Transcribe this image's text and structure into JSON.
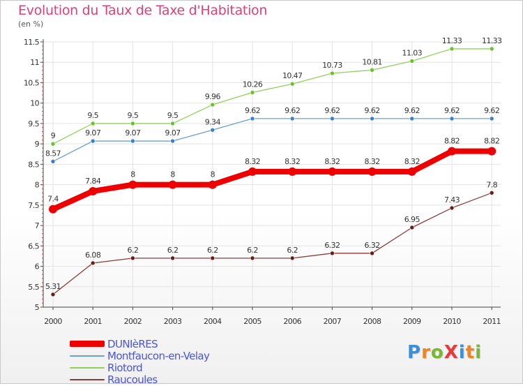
{
  "header": {
    "title": "Evolution du Taux de Taxe d'Habitation",
    "subtitle": "(en %)"
  },
  "colors": {
    "title": "#e0407a",
    "axis": "#444444",
    "grid": "#e3e3e3",
    "legend_text": "#4a55d8"
  },
  "logo": {
    "text": "ProXiti",
    "letters": [
      {
        "ch": "P",
        "color": "#3c8fd6"
      },
      {
        "ch": "r",
        "color": "#e8862a"
      },
      {
        "ch": "o",
        "color": "#79b834"
      },
      {
        "ch": "X",
        "color": "#e23c3c"
      },
      {
        "ch": "i",
        "color": "#3c8fd6"
      },
      {
        "ch": "t",
        "color": "#e8862a"
      },
      {
        "ch": "i",
        "color": "#79b834"
      }
    ]
  },
  "chart_data": {
    "type": "line",
    "title": "Evolution du Taux de Taxe d'Habitation",
    "subtitle": "(en %)",
    "xlabel": "",
    "ylabel": "",
    "categories": [
      "2000",
      "2001",
      "2002",
      "2003",
      "2004",
      "2005",
      "2006",
      "2007",
      "2008",
      "2009",
      "2010",
      "2011"
    ],
    "ylim": [
      5,
      11.5
    ],
    "yticks": [
      "5",
      "5.5",
      "6",
      "6.5",
      "7",
      "7.5",
      "8",
      "8.5",
      "9",
      "9.5",
      "10",
      "10.5",
      "11",
      "11.5"
    ],
    "grid": true,
    "legend_position": "bottom-left",
    "series": [
      {
        "name": "Riotord",
        "color": "#8fd05a",
        "marker": "#6cc030",
        "width": 1.3,
        "values": [
          9,
          9.5,
          9.5,
          9.5,
          9.96,
          10.26,
          10.47,
          10.73,
          10.81,
          11.03,
          11.33,
          11.33
        ],
        "labels": [
          "9",
          "9.5",
          "9.5",
          "9.5",
          "9.96",
          "10.26",
          "10.47",
          "10.73",
          "10.81",
          "11.03",
          "11.33",
          "11.33"
        ]
      },
      {
        "name": "Montfaucon-en-Velay",
        "color": "#6a9fd1",
        "marker": "#3a80c8",
        "width": 1.3,
        "values": [
          8.57,
          9.07,
          9.07,
          9.07,
          9.34,
          9.62,
          9.62,
          9.62,
          9.62,
          9.62,
          9.62,
          9.62
        ],
        "labels": [
          "8.57",
          "9.07",
          "9.07",
          "9.07",
          "9.34",
          "9.62",
          "9.62",
          "9.62",
          "9.62",
          "9.62",
          "9.62",
          "9.62"
        ]
      },
      {
        "name": "DUNIèRES",
        "color": "#ee0000",
        "marker": "#ee0000",
        "width": 8,
        "values": [
          7.4,
          7.84,
          8,
          8,
          8,
          8.32,
          8.32,
          8.32,
          8.32,
          8.32,
          8.82,
          8.82
        ],
        "labels": [
          "7.4",
          "7.84",
          "8",
          "8",
          "8",
          "8.32",
          "8.32",
          "8.32",
          "8.32",
          "8.32",
          "8.82",
          "8.82"
        ]
      },
      {
        "name": "Raucoules",
        "color": "#8a3a3a",
        "marker": "#6a1c1c",
        "width": 1.3,
        "values": [
          5.31,
          6.08,
          6.2,
          6.2,
          6.2,
          6.2,
          6.2,
          6.32,
          6.32,
          6.95,
          7.43,
          7.8
        ],
        "labels": [
          "5.31",
          "6.08",
          "6.2",
          "6.2",
          "6.2",
          "6.2",
          "6.2",
          "6.32",
          "6.32",
          "6.95",
          "7.43",
          "7.8"
        ]
      }
    ],
    "legend_order": [
      "DUNIèRES",
      "Montfaucon-en-Velay",
      "Riotord",
      "Raucoules"
    ]
  }
}
